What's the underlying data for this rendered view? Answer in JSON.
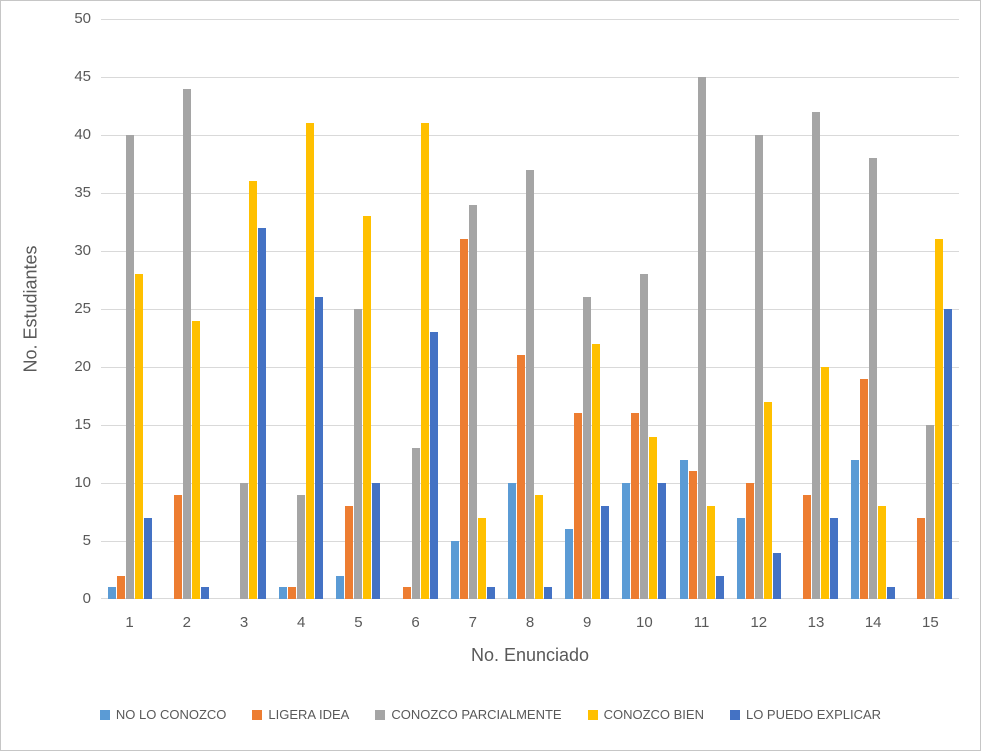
{
  "chart_data": {
    "type": "bar",
    "title": "",
    "xlabel": "No. Enunciado",
    "ylabel": "No. Estudiantes",
    "ylim": [
      0,
      50
    ],
    "yticks": [
      0,
      5,
      10,
      15,
      20,
      25,
      30,
      35,
      40,
      45,
      50
    ],
    "grid": true,
    "legend_position": "bottom",
    "categories": [
      "1",
      "2",
      "3",
      "4",
      "5",
      "6",
      "7",
      "8",
      "9",
      "10",
      "11",
      "12",
      "13",
      "14",
      "15"
    ],
    "series": [
      {
        "name": "NO LO CONOZCO",
        "color": "#5B9BD5",
        "values": [
          1,
          0,
          0,
          1,
          2,
          0,
          5,
          10,
          6,
          10,
          12,
          7,
          0,
          12,
          0
        ]
      },
      {
        "name": "LIGERA IDEA",
        "color": "#ED7D31",
        "values": [
          2,
          9,
          0,
          1,
          8,
          1,
          31,
          21,
          16,
          16,
          11,
          10,
          9,
          19,
          7
        ]
      },
      {
        "name": "CONOZCO PARCIALMENTE",
        "color": "#A5A5A5",
        "values": [
          40,
          44,
          10,
          9,
          25,
          13,
          34,
          37,
          26,
          28,
          45,
          40,
          42,
          38,
          15
        ]
      },
      {
        "name": "CONOZCO BIEN",
        "color": "#FFC000",
        "values": [
          28,
          24,
          36,
          41,
          33,
          41,
          7,
          9,
          22,
          14,
          8,
          17,
          20,
          8,
          31
        ]
      },
      {
        "name": "LO PUEDO EXPLICAR",
        "color": "#4472C4",
        "values": [
          7,
          1,
          32,
          26,
          10,
          23,
          1,
          1,
          8,
          10,
          2,
          4,
          7,
          1,
          25
        ]
      }
    ]
  }
}
